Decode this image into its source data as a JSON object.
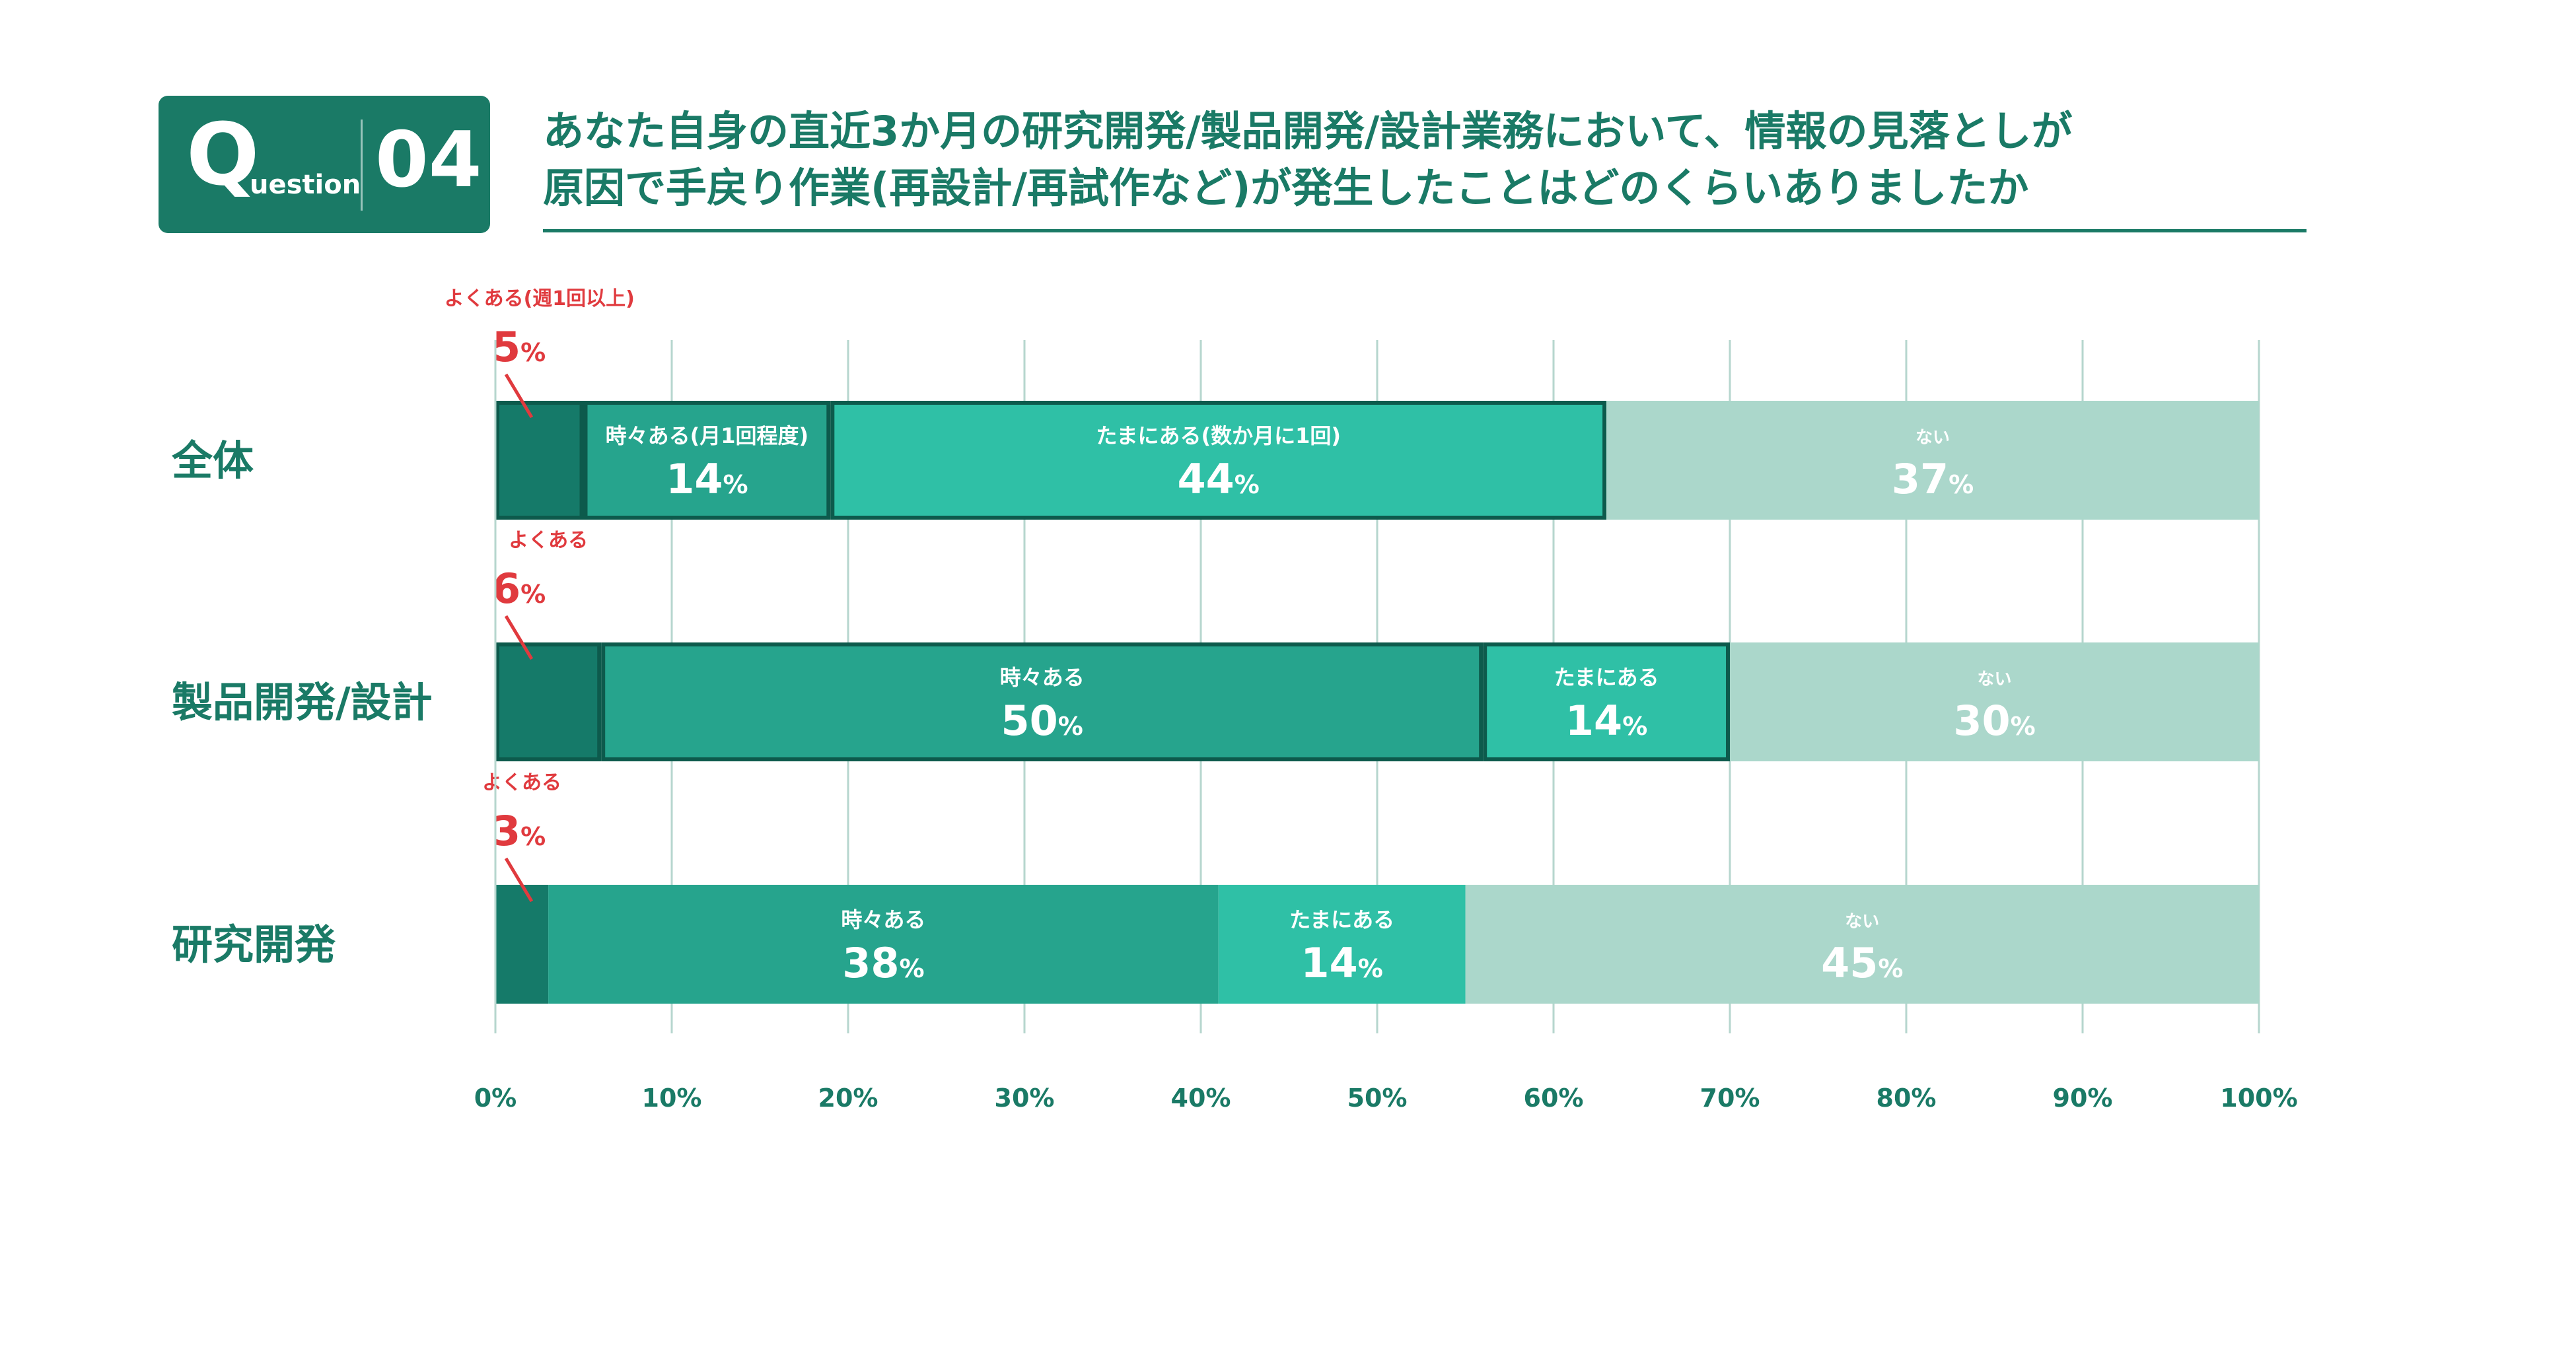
{
  "header": {
    "badge_q": "Q",
    "badge_rest": "uestion",
    "badge_number": "04",
    "title_line1": "あなた自身の直近3か月の研究開発/製品開発/設計業務において、情報の見落としが",
    "title_line2": "原因で手戻り作業(再設計/再試作など)が発生したことはどのくらいありましたか"
  },
  "colors": {
    "brand": "#1a7a66",
    "often": "#157a69",
    "sometimes": "#26a48d",
    "rarely": "#2fc0a6",
    "never": "#abd7cb",
    "annotation": "#e03a3e",
    "grid": "#b6d6ce",
    "text_dark": "#1a7a66"
  },
  "chart_data": {
    "type": "bar",
    "orientation": "horizontal",
    "stacked": true,
    "xlim": [
      0,
      100
    ],
    "x_ticks": [
      "0%",
      "10%",
      "20%",
      "30%",
      "40%",
      "50%",
      "60%",
      "70%",
      "80%",
      "90%",
      "100%"
    ],
    "categories": [
      "全体",
      "製品開発/設計",
      "研究開発"
    ],
    "series": [
      {
        "key": "often",
        "name": "よくある(週1回以上)",
        "values": [
          5,
          6,
          3
        ]
      },
      {
        "key": "sometimes",
        "name": "時々ある(月1回程度)",
        "values": [
          14,
          50,
          38
        ]
      },
      {
        "key": "rarely",
        "name": "たまにある(数か月に1回)",
        "values": [
          44,
          14,
          14
        ]
      },
      {
        "key": "never",
        "name": "ない",
        "values": [
          37,
          30,
          45
        ]
      }
    ],
    "segment_labels": [
      {
        "often": "よくある(週1回以上)",
        "sometimes": "時々ある(月1回程度)",
        "rarely": "たまにある(数か月に1回)",
        "never": "ない"
      },
      {
        "often": "よくある",
        "sometimes": "時々ある",
        "rarely": "たまにある",
        "never": "ない"
      },
      {
        "often": "よくある",
        "sometimes": "時々ある",
        "rarely": "たまにある",
        "never": "ない"
      }
    ],
    "percent_suffix": "%"
  }
}
